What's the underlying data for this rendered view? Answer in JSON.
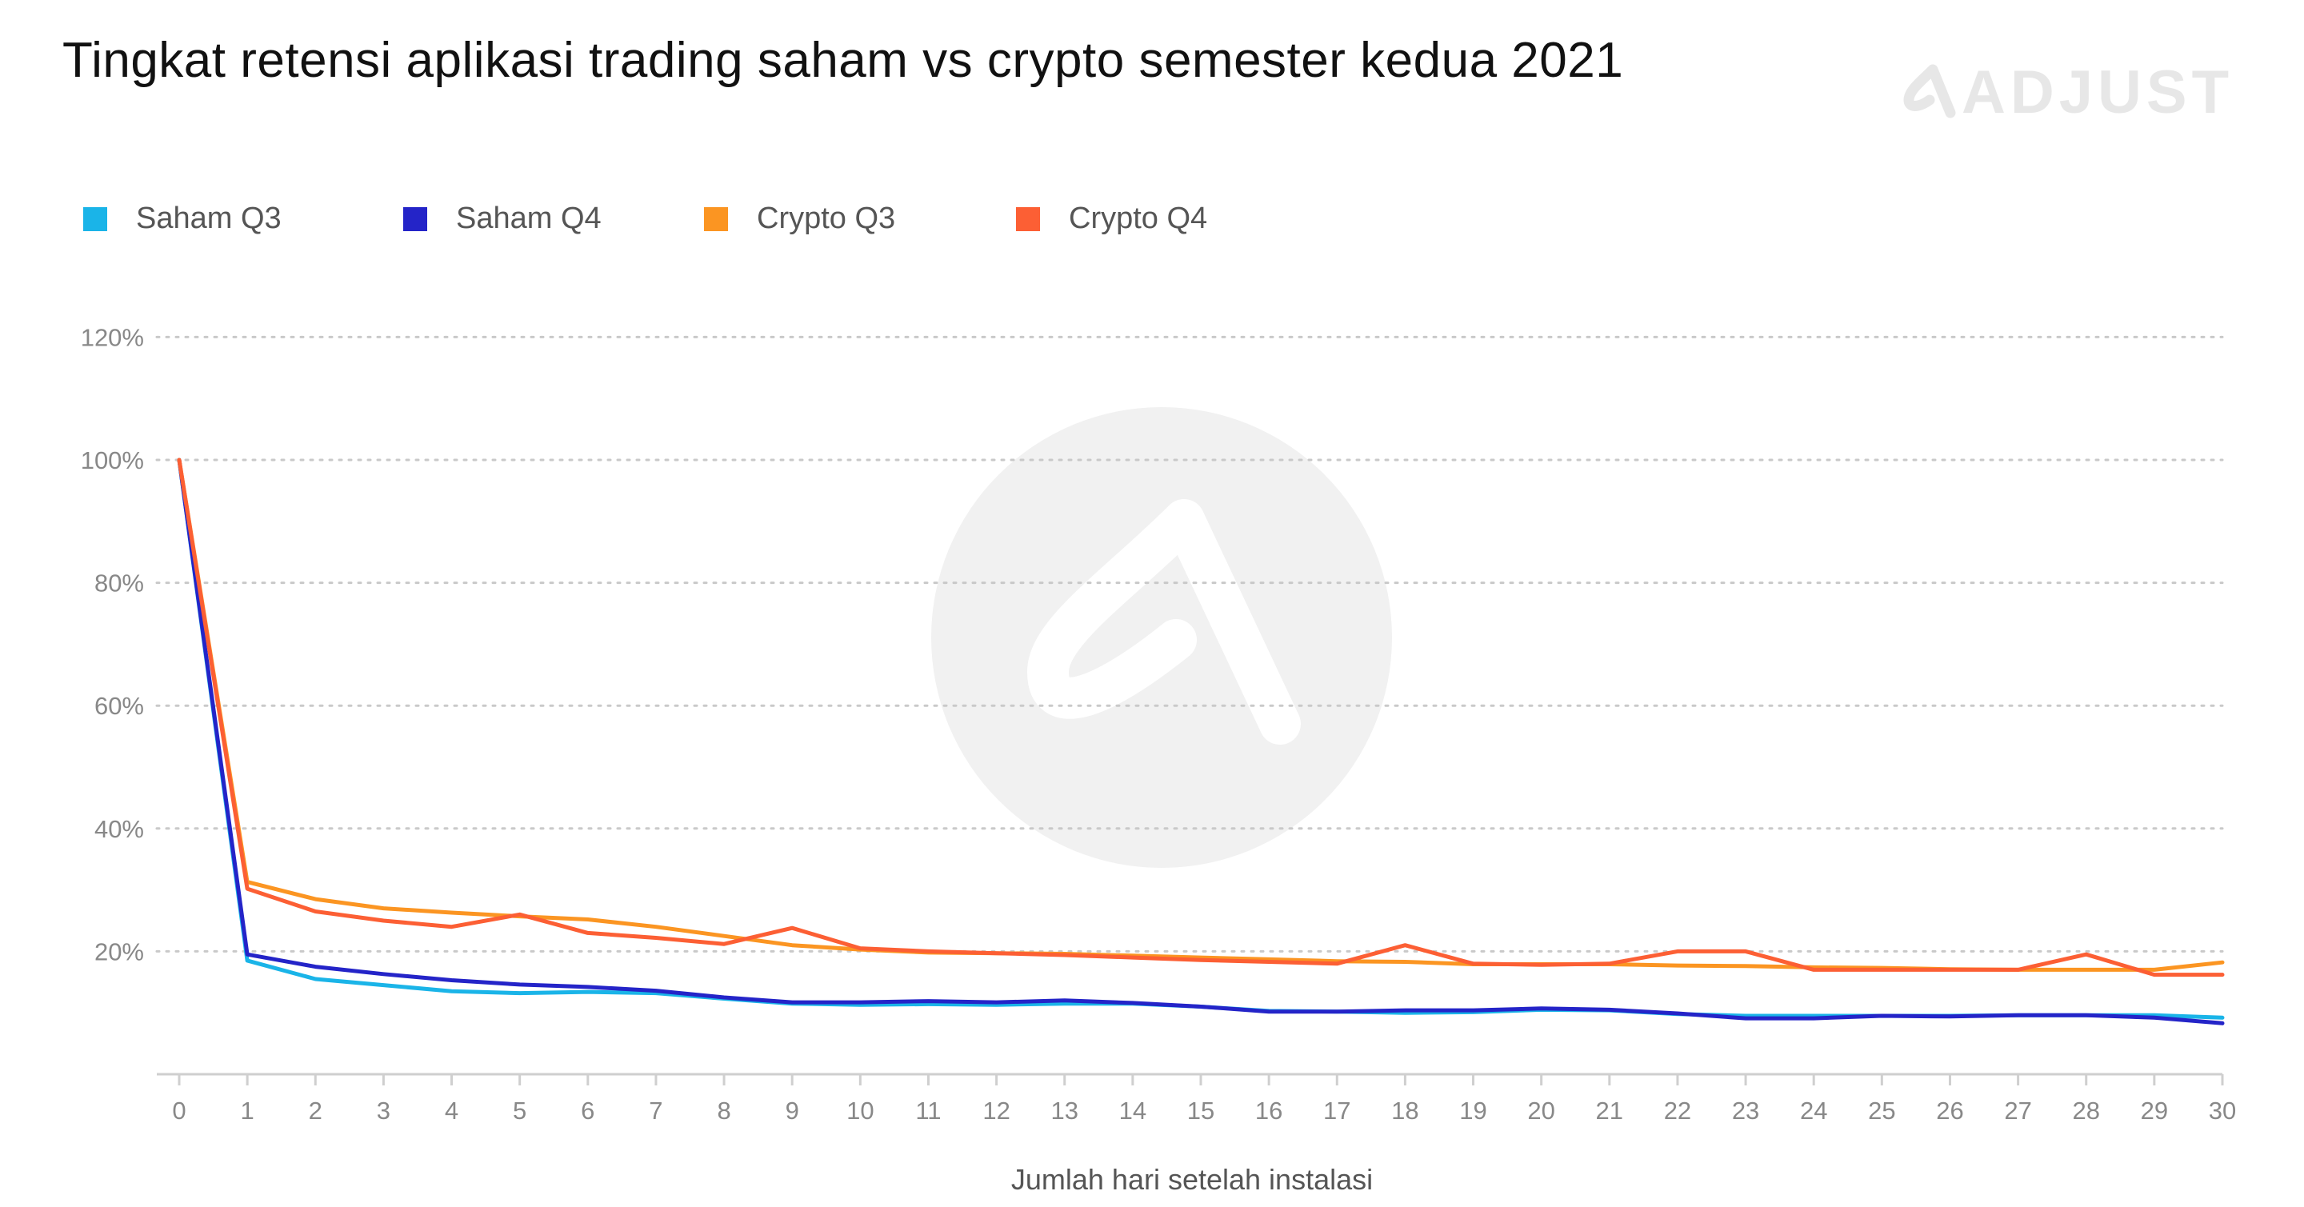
{
  "title": "Tingkat retensi aplikasi trading saham vs crypto semester kedua 2021",
  "brand": {
    "name": "ADJUST",
    "logo_icon": "adjust-logo-icon",
    "color": "#e6e6e6"
  },
  "chart_data": {
    "type": "line",
    "xlabel": "Jumlah hari setelah instalasi",
    "ylabel": "",
    "x": [
      0,
      1,
      2,
      3,
      4,
      5,
      6,
      7,
      8,
      9,
      10,
      11,
      12,
      13,
      14,
      15,
      16,
      17,
      18,
      19,
      20,
      21,
      22,
      23,
      24,
      25,
      26,
      27,
      28,
      29,
      30
    ],
    "xticks": [
      "0",
      "1",
      "2",
      "3",
      "4",
      "5",
      "6",
      "7",
      "8",
      "9",
      "10",
      "11",
      "12",
      "13",
      "14",
      "15",
      "16",
      "17",
      "18",
      "19",
      "20",
      "21",
      "22",
      "23",
      "24",
      "25",
      "26",
      "27",
      "28",
      "29",
      "30"
    ],
    "yticks": [
      20,
      40,
      60,
      80,
      100,
      120
    ],
    "ytick_labels": [
      "20%",
      "40%",
      "60%",
      "80%",
      "100%",
      "120%"
    ],
    "ylim": [
      0,
      120
    ],
    "grid": "horizontal-dotted",
    "legend_position": "top-left",
    "series": [
      {
        "name": "Saham Q3",
        "color": "#1ab4e8",
        "values": [
          100,
          18.5,
          15.5,
          14.5,
          13.5,
          13.2,
          13.4,
          13.2,
          12.3,
          11.5,
          11.3,
          11.4,
          11.3,
          11.5,
          11.5,
          11.0,
          10.3,
          10.2,
          10.0,
          10.1,
          10.5,
          10.4,
          9.8,
          9.5,
          9.5,
          9.5,
          9.5,
          9.6,
          9.6,
          9.6,
          9.2
        ]
      },
      {
        "name": "Saham Q4",
        "color": "#2424c8",
        "values": [
          100,
          19.5,
          17.5,
          16.3,
          15.3,
          14.6,
          14.2,
          13.6,
          12.5,
          11.7,
          11.7,
          11.9,
          11.7,
          12.0,
          11.6,
          11.0,
          10.2,
          10.2,
          10.4,
          10.4,
          10.7,
          10.5,
          9.9,
          9.1,
          9.1,
          9.5,
          9.4,
          9.6,
          9.6,
          9.2,
          8.3
        ]
      },
      {
        "name": "Crypto Q3",
        "color": "#fb9522",
        "values": [
          100,
          31.3,
          28.5,
          27.0,
          26.3,
          25.7,
          25.2,
          24.0,
          22.5,
          21.0,
          20.3,
          19.8,
          19.7,
          19.6,
          19.3,
          19.0,
          18.7,
          18.4,
          18.3,
          17.9,
          17.9,
          17.9,
          17.7,
          17.6,
          17.4,
          17.3,
          17.1,
          17.0,
          17.0,
          17.0,
          18.2
        ]
      },
      {
        "name": "Crypto Q4",
        "color": "#fc5f34",
        "values": [
          100,
          30.2,
          26.5,
          25.0,
          24.0,
          26.0,
          23.0,
          22.2,
          21.2,
          23.8,
          20.5,
          20.0,
          19.7,
          19.4,
          19.0,
          18.6,
          18.3,
          18.0,
          21.0,
          18.0,
          17.8,
          18.0,
          20.0,
          20.0,
          17.0,
          17.0,
          17.0,
          17.0,
          19.5,
          16.2,
          16.2
        ]
      }
    ]
  }
}
